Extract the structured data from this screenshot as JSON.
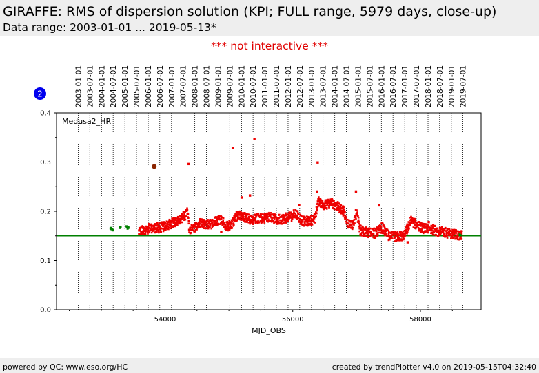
{
  "header": {
    "title": "GIRAFFE: RMS of dispersion solution (KPI; FULL range, 5979 days, close-up)",
    "subtitle": "Data range: 2003-01-01 ... 2019-05-13*"
  },
  "notice": "*** not interactive ***",
  "badge": "2",
  "footer": {
    "left": "powered by QC: www.eso.org/HC",
    "right": "created by trendPlotter v4.0 on 2019-05-15T04:32:40"
  },
  "colors": {
    "data": "#ee0000",
    "new_data": "#008000",
    "reference": "#008000",
    "badge": "#0000ee",
    "notice": "#e00000"
  },
  "chart_data": {
    "type": "scatter",
    "xlabel": "MJD_OBS",
    "ylabel": "",
    "xlim": [
      52300,
      58950
    ],
    "ylim": [
      0.0,
      0.4
    ],
    "xticks": [
      54000,
      56000,
      58000
    ],
    "yticks": [
      0.0,
      0.1,
      0.2,
      0.3,
      0.4
    ],
    "panel_label": "Medusa2_HR",
    "reference_line": 0.15,
    "date_ticks": [
      {
        "label": "2003-01-01",
        "mjd": 52640
      },
      {
        "label": "2003-07-01",
        "mjd": 52821
      },
      {
        "label": "2004-01-01",
        "mjd": 53005
      },
      {
        "label": "2004-07-01",
        "mjd": 53187
      },
      {
        "label": "2005-01-01",
        "mjd": 53371
      },
      {
        "label": "2005-07-01",
        "mjd": 53552
      },
      {
        "label": "2006-01-01",
        "mjd": 53736
      },
      {
        "label": "2006-07-01",
        "mjd": 53917
      },
      {
        "label": "2007-01-01",
        "mjd": 54101
      },
      {
        "label": "2007-07-01",
        "mjd": 54282
      },
      {
        "label": "2008-01-01",
        "mjd": 54466
      },
      {
        "label": "2008-07-01",
        "mjd": 54648
      },
      {
        "label": "2009-01-01",
        "mjd": 54832
      },
      {
        "label": "2009-07-01",
        "mjd": 55013
      },
      {
        "label": "2010-01-01",
        "mjd": 55197
      },
      {
        "label": "2010-07-01",
        "mjd": 55378
      },
      {
        "label": "2011-01-01",
        "mjd": 55562
      },
      {
        "label": "2011-07-01",
        "mjd": 55743
      },
      {
        "label": "2012-01-01",
        "mjd": 55927
      },
      {
        "label": "2012-07-01",
        "mjd": 56109
      },
      {
        "label": "2013-01-01",
        "mjd": 56293
      },
      {
        "label": "2013-07-01",
        "mjd": 56474
      },
      {
        "label": "2014-01-01",
        "mjd": 56658
      },
      {
        "label": "2014-07-01",
        "mjd": 56839
      },
      {
        "label": "2015-01-01",
        "mjd": 57023
      },
      {
        "label": "2015-07-01",
        "mjd": 57204
      },
      {
        "label": "2016-01-01",
        "mjd": 57388
      },
      {
        "label": "2016-07-01",
        "mjd": 57570
      },
      {
        "label": "2017-01-01",
        "mjd": 57754
      },
      {
        "label": "2017-07-01",
        "mjd": 57935
      },
      {
        "label": "2018-01-01",
        "mjd": 58119
      },
      {
        "label": "2018-07-01",
        "mjd": 58300
      },
      {
        "label": "2019-01-01",
        "mjd": 58484
      },
      {
        "label": "2019-07-01",
        "mjd": 58665
      }
    ],
    "trend": [
      [
        53590,
        0.158
      ],
      [
        53700,
        0.163
      ],
      [
        53800,
        0.167
      ],
      [
        53900,
        0.166
      ],
      [
        54000,
        0.17
      ],
      [
        54100,
        0.175
      ],
      [
        54200,
        0.182
      ],
      [
        54300,
        0.19
      ],
      [
        54350,
        0.198
      ],
      [
        54380,
        0.165
      ],
      [
        54450,
        0.165
      ],
      [
        54550,
        0.175
      ],
      [
        54700,
        0.173
      ],
      [
        54800,
        0.18
      ],
      [
        54880,
        0.185
      ],
      [
        54950,
        0.168
      ],
      [
        55050,
        0.175
      ],
      [
        55150,
        0.195
      ],
      [
        55250,
        0.188
      ],
      [
        55350,
        0.182
      ],
      [
        55450,
        0.186
      ],
      [
        55550,
        0.185
      ],
      [
        55650,
        0.19
      ],
      [
        55750,
        0.182
      ],
      [
        55850,
        0.185
      ],
      [
        55950,
        0.188
      ],
      [
        56050,
        0.195
      ],
      [
        56150,
        0.18
      ],
      [
        56250,
        0.18
      ],
      [
        56350,
        0.185
      ],
      [
        56400,
        0.222
      ],
      [
        56500,
        0.213
      ],
      [
        56600,
        0.218
      ],
      [
        56700,
        0.21
      ],
      [
        56800,
        0.2
      ],
      [
        56850,
        0.175
      ],
      [
        56950,
        0.173
      ],
      [
        57000,
        0.2
      ],
      [
        57050,
        0.162
      ],
      [
        57150,
        0.157
      ],
      [
        57300,
        0.155
      ],
      [
        57400,
        0.167
      ],
      [
        57500,
        0.15
      ],
      [
        57650,
        0.148
      ],
      [
        57750,
        0.152
      ],
      [
        57850,
        0.18
      ],
      [
        57950,
        0.172
      ],
      [
        58050,
        0.165
      ],
      [
        58200,
        0.162
      ],
      [
        58350,
        0.158
      ],
      [
        58450,
        0.155
      ],
      [
        58550,
        0.153
      ],
      [
        58650,
        0.15
      ]
    ],
    "outliers": [
      [
        53830,
        0.291
      ],
      [
        54370,
        0.296
      ],
      [
        55060,
        0.329
      ],
      [
        55400,
        0.347
      ],
      [
        56390,
        0.299
      ],
      [
        56380,
        0.24
      ],
      [
        55200,
        0.228
      ],
      [
        55330,
        0.232
      ],
      [
        56990,
        0.24
      ],
      [
        57350,
        0.212
      ],
      [
        57800,
        0.137
      ],
      [
        54880,
        0.158
      ],
      [
        56100,
        0.213
      ],
      [
        58130,
        0.178
      ]
    ],
    "new_points": [
      [
        53150,
        0.165
      ],
      [
        53180,
        0.163
      ],
      [
        53300,
        0.166
      ],
      [
        53400,
        0.168
      ],
      [
        53420,
        0.166
      ],
      [
        53830,
        0.291
      ],
      [
        58620,
        0.152
      ]
    ]
  }
}
